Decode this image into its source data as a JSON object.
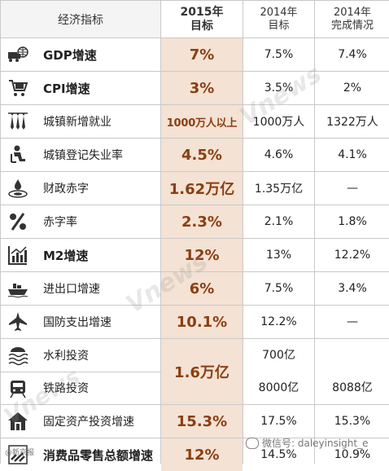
{
  "header": {
    "indicator": "经济指标",
    "target_2015_line1": "2015年",
    "target_2015_line2": "目标",
    "target_2014_line1": "2014年",
    "target_2014_line2": "目标",
    "actual_2014_line1": "2014年",
    "actual_2014_line2": "完成情况"
  },
  "rows": [
    {
      "name": "GDP增速",
      "icon": "truck-globe-icon",
      "t2015": "7%",
      "t2014": "7.5%",
      "a2014": "7.4%"
    },
    {
      "name": "CPI增速",
      "icon": "shopping-cart-icon",
      "t2015": "3%",
      "t2014": "3.5%",
      "a2014": "2%"
    },
    {
      "name": "城镇新增就业",
      "icon": "ties-icon",
      "t2015": "1000万人以上",
      "t2014": "1000万人",
      "a2014": "1322万人"
    },
    {
      "name": "城镇登记失业率",
      "icon": "sitting-person-icon",
      "t2015": "4.5%",
      "t2014": "4.6%",
      "a2014": "4.1%"
    },
    {
      "name": "财政赤字",
      "icon": "drop-ripple-icon",
      "t2015": "1.62万亿",
      "t2014": "1.35万亿",
      "a2014": "—"
    },
    {
      "name": "赤字率",
      "icon": "percent-icon",
      "t2015": "2.3%",
      "t2014": "2.1%",
      "a2014": "1.8%"
    },
    {
      "name": "M2增速",
      "icon": "bar-chart-icon",
      "t2015": "12%",
      "t2014": "13%",
      "a2014": "12.2%"
    },
    {
      "name": "进出口增速",
      "icon": "cargo-ship-icon",
      "t2015": "6%",
      "t2014": "7.5%",
      "a2014": "3.4%"
    },
    {
      "name": "国防支出增速",
      "icon": "fighter-jet-icon",
      "t2015": "10.1%",
      "t2014": "12.2%",
      "a2014": "—"
    }
  ],
  "merged": {
    "t2015": "1.6万亿",
    "water": {
      "name": "水利投资",
      "icon": "water-waves-icon",
      "t2014": "700亿",
      "a2014": ""
    },
    "rail": {
      "name": "铁路投资",
      "icon": "train-icon",
      "t2014": "8000亿",
      "a2014": "8088亿"
    }
  },
  "rows_after": [
    {
      "name": "固定资产投资增速",
      "icon": "house-icon",
      "t2015": "15.3%",
      "t2014": "17.5%",
      "a2014": "15.3%"
    },
    {
      "name": "消费品零售总额增速",
      "icon": "retail-icon",
      "t2015": "12%",
      "t2014": "14.5%",
      "a2014": "10.9%"
    }
  ],
  "watermark": "Vnews",
  "footer_left": "@新京报",
  "footer_right": "微信号: daleyinsight_e"
}
